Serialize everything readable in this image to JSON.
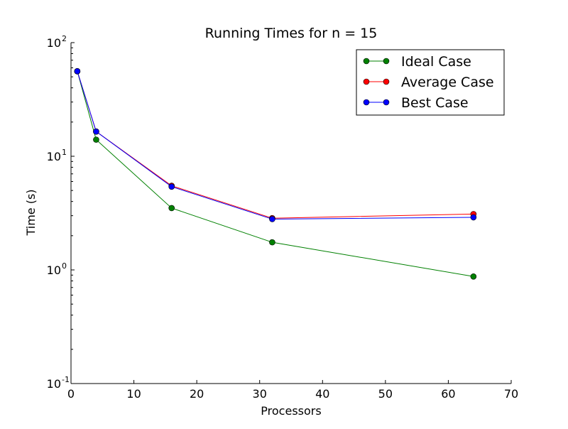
{
  "chart_data": {
    "type": "line",
    "title": "Running Times for n = 15",
    "xlabel": "Processors",
    "ylabel": "Time (s)",
    "xlim": [
      0,
      70
    ],
    "ylim": [
      0.1,
      100
    ],
    "yscale": "log",
    "grid": false,
    "legend_position": "top-right",
    "x_ticks": [
      0,
      10,
      20,
      30,
      40,
      50,
      60,
      70
    ],
    "x_tick_labels": [
      "0",
      "10",
      "20",
      "30",
      "40",
      "50",
      "60",
      "70"
    ],
    "y_ticks": [
      0.1,
      1,
      10,
      100
    ],
    "y_tick_labels": [
      {
        "base": "10",
        "exp": "-1"
      },
      {
        "base": "10",
        "exp": "0"
      },
      {
        "base": "10",
        "exp": "1"
      },
      {
        "base": "10",
        "exp": "2"
      }
    ],
    "series": [
      {
        "name": "Ideal Case",
        "color": "#008000",
        "x": [
          1,
          4,
          16,
          32,
          64
        ],
        "y": [
          56,
          14,
          3.5,
          1.75,
          0.875
        ]
      },
      {
        "name": "Average Case",
        "color": "#ff0000",
        "x": [
          1,
          4,
          16,
          32,
          64
        ],
        "y": [
          56,
          16.5,
          5.5,
          2.85,
          3.1
        ]
      },
      {
        "name": "Best Case",
        "color": "#0000ff",
        "x": [
          1,
          4,
          16,
          32,
          64
        ],
        "y": [
          56,
          16.5,
          5.4,
          2.8,
          2.9
        ]
      }
    ]
  }
}
